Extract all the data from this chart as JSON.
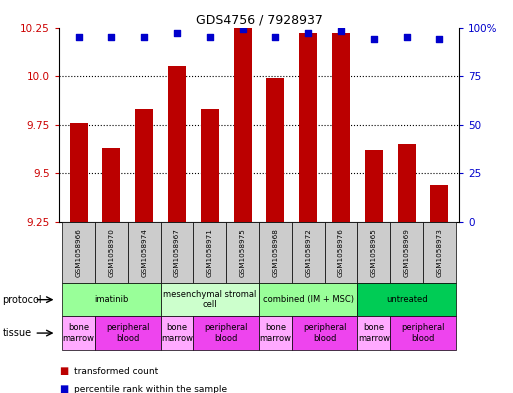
{
  "title": "GDS4756 / 7928937",
  "samples": [
    "GSM1058966",
    "GSM1058970",
    "GSM1058974",
    "GSM1058967",
    "GSM1058971",
    "GSM1058975",
    "GSM1058968",
    "GSM1058972",
    "GSM1058976",
    "GSM1058965",
    "GSM1058969",
    "GSM1058973"
  ],
  "transformed_count": [
    9.76,
    9.63,
    9.83,
    10.05,
    9.83,
    10.25,
    9.99,
    10.22,
    10.22,
    9.62,
    9.65,
    9.44
  ],
  "percentile_rank": [
    95,
    95,
    95,
    97,
    95,
    99,
    95,
    97,
    98,
    94,
    95,
    94
  ],
  "ymin": 9.25,
  "ymax": 10.25,
  "yticks": [
    9.25,
    9.5,
    9.75,
    10.0,
    10.25
  ],
  "y2min": 0,
  "y2max": 100,
  "y2ticks": [
    0,
    25,
    50,
    75,
    100
  ],
  "bar_color": "#bb0000",
  "dot_color": "#0000cc",
  "protocols": [
    {
      "label": "imatinib",
      "start": 0,
      "end": 3,
      "color": "#99ff99"
    },
    {
      "label": "mesenchymal stromal\ncell",
      "start": 3,
      "end": 6,
      "color": "#ccffcc"
    },
    {
      "label": "combined (IM + MSC)",
      "start": 6,
      "end": 9,
      "color": "#99ff99"
    },
    {
      "label": "untreated",
      "start": 9,
      "end": 12,
      "color": "#00cc55"
    }
  ],
  "tissues": [
    {
      "label": "bone\nmarrow",
      "start": 0,
      "end": 1,
      "color": "#ffaaff"
    },
    {
      "label": "peripheral\nblood",
      "start": 1,
      "end": 3,
      "color": "#ee44ee"
    },
    {
      "label": "bone\nmarrow",
      "start": 3,
      "end": 4,
      "color": "#ffaaff"
    },
    {
      "label": "peripheral\nblood",
      "start": 4,
      "end": 6,
      "color": "#ee44ee"
    },
    {
      "label": "bone\nmarrow",
      "start": 6,
      "end": 7,
      "color": "#ffaaff"
    },
    {
      "label": "peripheral\nblood",
      "start": 7,
      "end": 9,
      "color": "#ee44ee"
    },
    {
      "label": "bone\nmarrow",
      "start": 9,
      "end": 10,
      "color": "#ffaaff"
    },
    {
      "label": "peripheral\nblood",
      "start": 10,
      "end": 12,
      "color": "#ee44ee"
    }
  ],
  "tick_color_left": "#cc0000",
  "tick_color_right": "#0000cc",
  "legend_items": [
    {
      "label": "transformed count",
      "color": "#bb0000"
    },
    {
      "label": "percentile rank within the sample",
      "color": "#0000cc"
    }
  ]
}
